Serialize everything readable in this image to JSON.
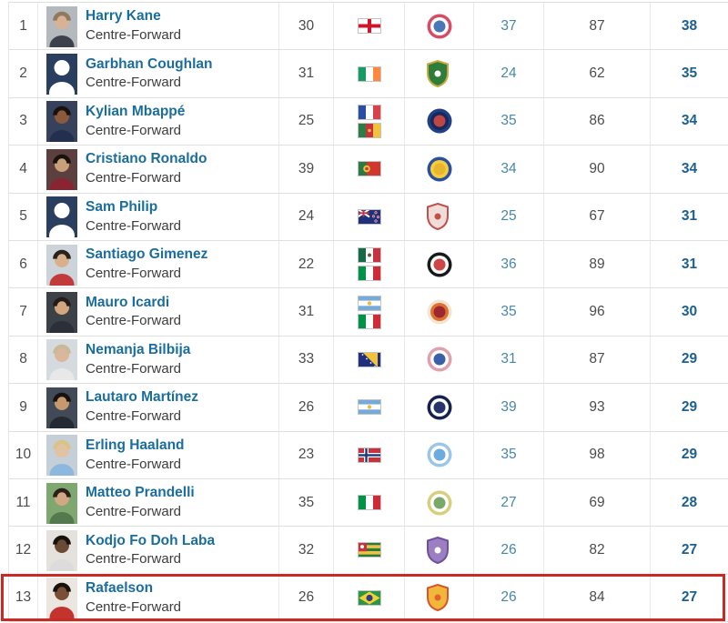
{
  "table": {
    "row_count": 13,
    "columns": [
      "rank",
      "player",
      "age",
      "nationality",
      "club",
      "stat1",
      "stat2",
      "stat3"
    ]
  },
  "highlight": {
    "rank": 13,
    "color": "#cb2a23"
  },
  "colors": {
    "name_link": "#1a6d9c",
    "stat_link": "#4787a9",
    "stat_bold_link": "#1c6091",
    "text_gray": "#4c4c4c",
    "grid_line": "#e0e0e0",
    "placeholder_photo": "#2a3f5f"
  },
  "players": [
    {
      "rank": 1,
      "name": "Harry Kane",
      "position": "Centre-Forward",
      "age": 30,
      "nationalities": [
        "England"
      ],
      "club": "Bayern Munich",
      "badge": {
        "shape": "circle",
        "colors": [
          "#d84b66",
          "#ffffff",
          "#4a77b8"
        ]
      },
      "photo": {
        "type": "photo",
        "bg": "#b4b9bd",
        "skin": "#d8b295",
        "hair": "#8f7a5d",
        "shirt": "#3c414b"
      },
      "stat1": 37,
      "stat2": 87,
      "stat3": 38
    },
    {
      "rank": 2,
      "name": "Garbhan Coughlan",
      "position": "Centre-Forward",
      "age": 31,
      "nationalities": [
        "Ireland"
      ],
      "club": "green-crest-club",
      "badge": {
        "shape": "shield",
        "colors": [
          "#c9a93c",
          "#2e7d3a",
          "#ffffff"
        ]
      },
      "photo": {
        "type": "placeholder"
      },
      "stat1": 24,
      "stat2": 62,
      "stat3": 35
    },
    {
      "rank": 3,
      "name": "Kylian Mbappé",
      "position": "Centre-Forward",
      "age": 25,
      "nationalities": [
        "France",
        "Cameroon"
      ],
      "club": "Paris Saint-Germain",
      "badge": {
        "shape": "circle",
        "colors": [
          "#223f85",
          "#16295c",
          "#c04545"
        ]
      },
      "photo": {
        "type": "photo",
        "bg": "#36415c",
        "skin": "#8a5a3b",
        "hair": "#17120e",
        "shirt": "#222f4e"
      },
      "stat1": 35,
      "stat2": 86,
      "stat3": 34
    },
    {
      "rank": 4,
      "name": "Cristiano Ronaldo",
      "position": "Centre-Forward",
      "age": 39,
      "nationalities": [
        "Portugal"
      ],
      "club": "Al-Nassr",
      "badge": {
        "shape": "circle",
        "colors": [
          "#2b4ea0",
          "#f3cf3a",
          "#e9b52e"
        ]
      },
      "photo": {
        "type": "photo",
        "bg": "#5c4040",
        "skin": "#c9a078",
        "hair": "#17120e",
        "shirt": "#8a2430"
      },
      "stat1": 34,
      "stat2": 90,
      "stat3": 34
    },
    {
      "rank": 5,
      "name": "Sam Philip",
      "position": "Centre-Forward",
      "age": 24,
      "nationalities": [
        "New Zealand"
      ],
      "club": "red-crest-club",
      "badge": {
        "shape": "shield",
        "colors": [
          "#c0504a",
          "#f0dcd8",
          "#c0504a"
        ]
      },
      "photo": {
        "type": "placeholder"
      },
      "stat1": 25,
      "stat2": 67,
      "stat3": 31
    },
    {
      "rank": 6,
      "name": "Santiago Gimenez",
      "position": "Centre-Forward",
      "age": 22,
      "nationalities": [
        "Mexico",
        "Italy"
      ],
      "club": "Feyenoord",
      "badge": {
        "shape": "circle",
        "colors": [
          "#1a1a1a",
          "#ffffff",
          "#d04545"
        ]
      },
      "photo": {
        "type": "photo",
        "bg": "#ccd4da",
        "skin": "#d9b08c",
        "hair": "#2a211a",
        "shirt": "#c23b3b"
      },
      "stat1": 36,
      "stat2": 89,
      "stat3": 31
    },
    {
      "rank": 7,
      "name": "Mauro Icardi",
      "position": "Centre-Forward",
      "age": 31,
      "nationalities": [
        "Argentina",
        "Italy"
      ],
      "club": "Galatasaray",
      "badge": {
        "shape": "circle",
        "colors": [
          "#f0e6d2",
          "#e0702e",
          "#9c2733"
        ]
      },
      "photo": {
        "type": "photo",
        "bg": "#3c4148",
        "skin": "#d2a67f",
        "hair": "#241c16",
        "shirt": "#2b3038"
      },
      "stat1": 35,
      "stat2": 96,
      "stat3": 30
    },
    {
      "rank": 8,
      "name": "Nemanja Bilbija",
      "position": "Centre-Forward",
      "age": 33,
      "nationalities": [
        "Bosnia and Herzegovina"
      ],
      "club": "Zrinjski Mostar",
      "badge": {
        "shape": "circle",
        "colors": [
          "#e0a1ad",
          "#ffffff",
          "#3b5ea8"
        ]
      },
      "photo": {
        "type": "photo",
        "bg": "#d5dade",
        "skin": "#dab79a",
        "hair": "#c9b999",
        "shirt": "#e8e8e8"
      },
      "stat1": 31,
      "stat2": 87,
      "stat3": 29
    },
    {
      "rank": 9,
      "name": "Lautaro Martínez",
      "position": "Centre-Forward",
      "age": 26,
      "nationalities": [
        "Argentina"
      ],
      "club": "Inter Milan",
      "badge": {
        "shape": "circle",
        "colors": [
          "#16214d",
          "#ffffff",
          "#27346b"
        ]
      },
      "photo": {
        "type": "photo",
        "bg": "#414a56",
        "skin": "#c79a6e",
        "hair": "#17120e",
        "shirt": "#232a33"
      },
      "stat1": 39,
      "stat2": 93,
      "stat3": 29
    },
    {
      "rank": 10,
      "name": "Erling Haaland",
      "position": "Centre-Forward",
      "age": 23,
      "nationalities": [
        "Norway"
      ],
      "club": "Manchester City",
      "badge": {
        "shape": "circle",
        "colors": [
          "#9cc6e8",
          "#ffffff",
          "#6cabdd"
        ]
      },
      "photo": {
        "type": "photo",
        "bg": "#c4cfd8",
        "skin": "#e3c2a3",
        "hair": "#d9c38a",
        "shirt": "#8db8dd"
      },
      "stat1": 35,
      "stat2": 98,
      "stat3": 29
    },
    {
      "rank": 11,
      "name": "Matteo Prandelli",
      "position": "Centre-Forward",
      "age": 35,
      "nationalities": [
        "Italy"
      ],
      "club": "pale-green-crest-club",
      "badge": {
        "shape": "circle",
        "colors": [
          "#d8cf7e",
          "#ffffff",
          "#7aa86b"
        ]
      },
      "photo": {
        "type": "photo",
        "bg": "#7fa871",
        "skin": "#d2a884",
        "hair": "#2a211a",
        "shirt": "#55794f"
      },
      "stat1": 27,
      "stat2": 69,
      "stat3": 28
    },
    {
      "rank": 12,
      "name": "Kodjo Fo Doh Laba",
      "position": "Centre-Forward",
      "age": 32,
      "nationalities": [
        "Togo"
      ],
      "club": "purple-crest-club",
      "badge": {
        "shape": "shield",
        "colors": [
          "#6f4fa0",
          "#9b7fc0",
          "#ffffff"
        ]
      },
      "photo": {
        "type": "photo",
        "bg": "#e5e1dc",
        "skin": "#6b4a35",
        "hair": "#17120e",
        "shirt": "#dcdcdc"
      },
      "stat1": 26,
      "stat2": 82,
      "stat3": 27
    },
    {
      "rank": 13,
      "name": "Rafaelson",
      "position": "Centre-Forward",
      "age": 26,
      "nationalities": [
        "Brazil"
      ],
      "club": "Nam Dinh",
      "badge": {
        "shape": "shield",
        "colors": [
          "#d9542b",
          "#f0b73a",
          "#e2612f"
        ]
      },
      "photo": {
        "type": "photo",
        "bg": "#ece6e0",
        "skin": "#7a4f38",
        "hair": "#17120e",
        "shirt": "#c4342e"
      },
      "stat1": 26,
      "stat2": 84,
      "stat3": 27
    }
  ]
}
